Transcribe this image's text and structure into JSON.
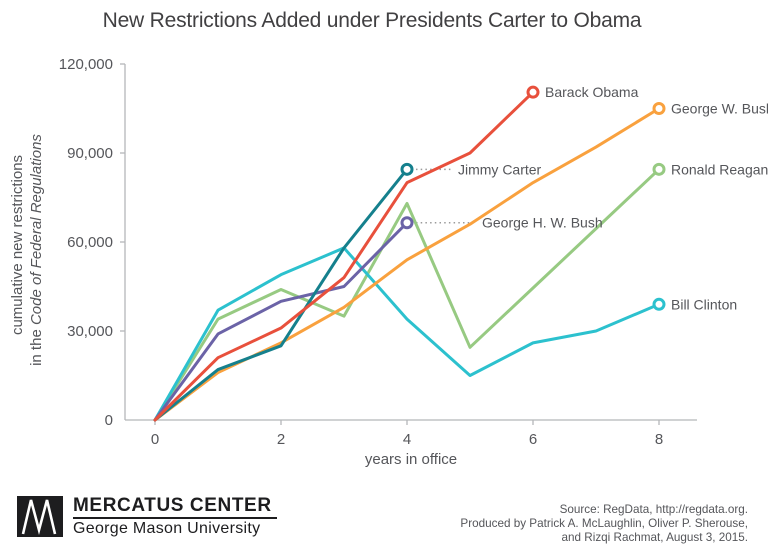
{
  "title": "New Restrictions Added under Presidents Carter to Obama",
  "chart_data": {
    "type": "line",
    "title": "New Restrictions Added under Presidents Carter to Obama",
    "xlabel": "years in office",
    "ylabel_line1": "cumulative new restrictions",
    "ylabel_line2_prefix": "in the ",
    "ylabel_line2_italic": "Code of Federal Regulations",
    "xlim": [
      0,
      8
    ],
    "ylim": [
      0,
      120000
    ],
    "x_ticks": [
      0,
      2,
      4,
      6,
      8
    ],
    "y_ticks": [
      0,
      30000,
      60000,
      90000,
      120000
    ],
    "y_tick_labels": [
      "0",
      "30,000",
      "60,000",
      "90,000",
      "120,000"
    ],
    "grid": false,
    "legend_position": "end-of-line labels",
    "series": [
      {
        "name": "Ronald Reagan",
        "color": "#97ca82",
        "years": [
          0,
          1,
          2,
          3,
          4,
          5,
          6,
          7,
          8
        ],
        "values": [
          0,
          34000,
          44000,
          35000,
          73000,
          24500,
          44500,
          64500,
          84500
        ]
      },
      {
        "name": "Bill Clinton",
        "color": "#2cc1ce",
        "years": [
          0,
          1,
          2,
          3,
          4,
          5,
          6,
          7,
          8
        ],
        "values": [
          0,
          37000,
          49000,
          58000,
          34000,
          15000,
          26000,
          30000,
          39000
        ]
      },
      {
        "name": "George H. W. Bush",
        "color": "#6b63a7",
        "years": [
          0,
          1,
          2,
          3,
          4
        ],
        "values": [
          0,
          29000,
          40000,
          45000,
          66500
        ]
      },
      {
        "name": "George W. Bush",
        "color": "#f9a13e",
        "years": [
          0,
          1,
          2,
          3,
          4,
          5,
          6,
          7,
          8
        ],
        "values": [
          0,
          16000,
          26000,
          38000,
          54000,
          66000,
          80000,
          92000,
          105000
        ]
      },
      {
        "name": "Jimmy Carter",
        "color": "#15808d",
        "years": [
          0,
          1,
          2,
          3,
          4
        ],
        "values": [
          0,
          17000,
          25000,
          58000,
          84500
        ]
      },
      {
        "name": "Barack Obama",
        "color": "#e8503c",
        "years": [
          0,
          1,
          2,
          3,
          4,
          5,
          6
        ],
        "values": [
          0,
          21000,
          31000,
          48000,
          80000,
          90000,
          110500
        ]
      }
    ]
  },
  "colors": {
    "axis": "#b5b7b9",
    "tick_text": "#55565a",
    "title_text": "#414042",
    "label_text": "#55565a",
    "leader_dots": "#9b9b9b",
    "background": "#ffffff"
  },
  "footer": {
    "logo_title": "MERCATUS CENTER",
    "logo_subtitle": "George Mason University",
    "source_lines": [
      "Source: RegData, http://regdata.org.",
      "Produced by Patrick A. McLaughlin, Oliver P. Sherouse,",
      "and Rizqi Rachmat, August 3, 2015."
    ]
  }
}
